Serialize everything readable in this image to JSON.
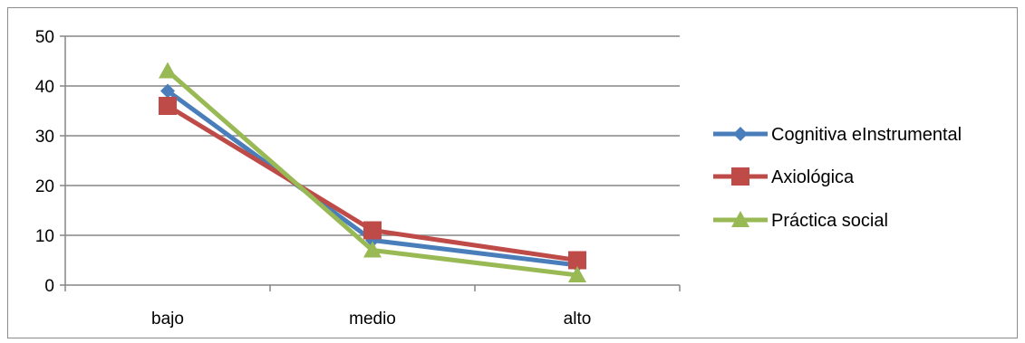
{
  "chart_data": {
    "type": "line",
    "categories": [
      "bajo",
      "medio",
      "alto"
    ],
    "series": [
      {
        "name": "Cognitiva eInstrumental",
        "values": [
          39,
          9,
          4
        ],
        "color": "#4a7ebb",
        "marker": "diamond"
      },
      {
        "name": "Axiológica",
        "values": [
          36,
          11,
          5
        ],
        "color": "#be4b48",
        "marker": "square"
      },
      {
        "name": "Práctica social",
        "values": [
          43,
          7,
          2
        ],
        "color": "#98b954",
        "marker": "triangle"
      }
    ],
    "ylim": [
      0,
      50
    ],
    "yticks": [
      0,
      10,
      20,
      30,
      40,
      50
    ],
    "grid": true,
    "legend": "right"
  }
}
